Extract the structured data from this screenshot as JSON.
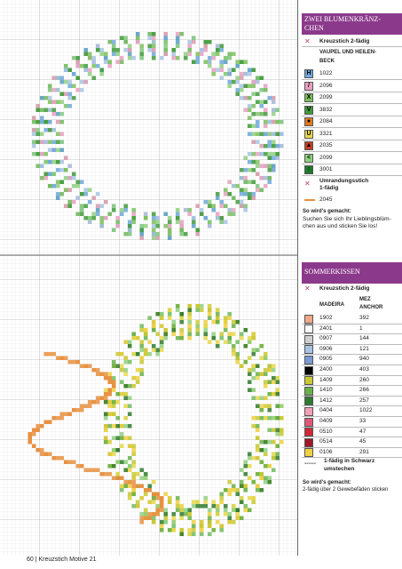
{
  "legend_top": {
    "title": [
      "ZWEI BLUMENKRÄNZ-",
      "CHEN"
    ],
    "stitch": {
      "symbol": "✕",
      "label": "Kreuzstich 2-fädig"
    },
    "brand": [
      "VAUPEL UND HEILEN-",
      "BECK"
    ],
    "rows": [
      {
        "symbol": "H",
        "color": "#6fa8dc",
        "code": "1022"
      },
      {
        "symbol": "/",
        "color": "#e8a0c0",
        "code": "2096"
      },
      {
        "symbol": "X",
        "color": "#7bbf5a",
        "code": "2099"
      },
      {
        "symbol": "V",
        "color": "#3f9a3a",
        "code": "3832"
      },
      {
        "symbol": "●",
        "color": "#e07a20",
        "code": "2084"
      },
      {
        "symbol": "U",
        "color": "#e8d84a",
        "code": "3321"
      },
      {
        "symbol": "▲",
        "color": "#c04020",
        "code": "2035"
      },
      {
        "symbol": "<",
        "color": "#8fd080",
        "code": "2099"
      },
      {
        "symbol": "↑",
        "color": "#1f7a2a",
        "code": "3001"
      }
    ],
    "outline": {
      "symbol": "✕",
      "label": [
        "Umrandungsstich",
        "1-fädig"
      ],
      "code": "2045"
    },
    "howto": {
      "title": "So wird's gemacht:",
      "text": [
        "Suchen Sie sich Ihr Lieblingsblüm-",
        "chen aus und sticken Sie los!"
      ]
    }
  },
  "legend_bottom": {
    "title": "SOMMERKISSEN",
    "stitch": {
      "symbol": "✕",
      "label": "Kreuzstich 2-fädig"
    },
    "columns": [
      "MADEIRA",
      [
        "MEZ",
        "ANCHOR"
      ]
    ],
    "rows": [
      {
        "color": "#f0a888",
        "madeira": "1902",
        "anchor": "392"
      },
      {
        "color": "#ffffff",
        "madeira": "2401",
        "anchor": "1"
      },
      {
        "color": "#cfcfcf",
        "madeira": "0907",
        "anchor": "144"
      },
      {
        "color": "#a8c4e4",
        "madeira": "0906",
        "anchor": "121"
      },
      {
        "color": "#7a9ad0",
        "madeira": "0905",
        "anchor": "940"
      },
      {
        "color": "#000000",
        "madeira": "2400",
        "anchor": "403"
      },
      {
        "color": "#c8c830",
        "madeira": "1409",
        "anchor": "260"
      },
      {
        "color": "#6ab04a",
        "madeira": "1410",
        "anchor": "266"
      },
      {
        "color": "#2f7a2f",
        "madeira": "1412",
        "anchor": "257"
      },
      {
        "color": "#f4a0b4",
        "madeira": "0404",
        "anchor": "1022"
      },
      {
        "color": "#e05878",
        "madeira": "0409",
        "anchor": "33"
      },
      {
        "color": "#d02838",
        "madeira": "0510",
        "anchor": "47"
      },
      {
        "color": "#a01828",
        "madeira": "0514",
        "anchor": "45"
      },
      {
        "color": "#f0d040",
        "madeira": "0106",
        "anchor": "291"
      }
    ],
    "outline": {
      "symbol": "------",
      "label": [
        "1-fädig in Schwarz",
        "umstechen"
      ]
    },
    "howto": {
      "title": "So wird's gemacht:",
      "text": "2-fädig über 2 Gewebefäden sticken"
    }
  },
  "footer": {
    "page": "60",
    "title": "Kreuzstich Motive 21"
  }
}
